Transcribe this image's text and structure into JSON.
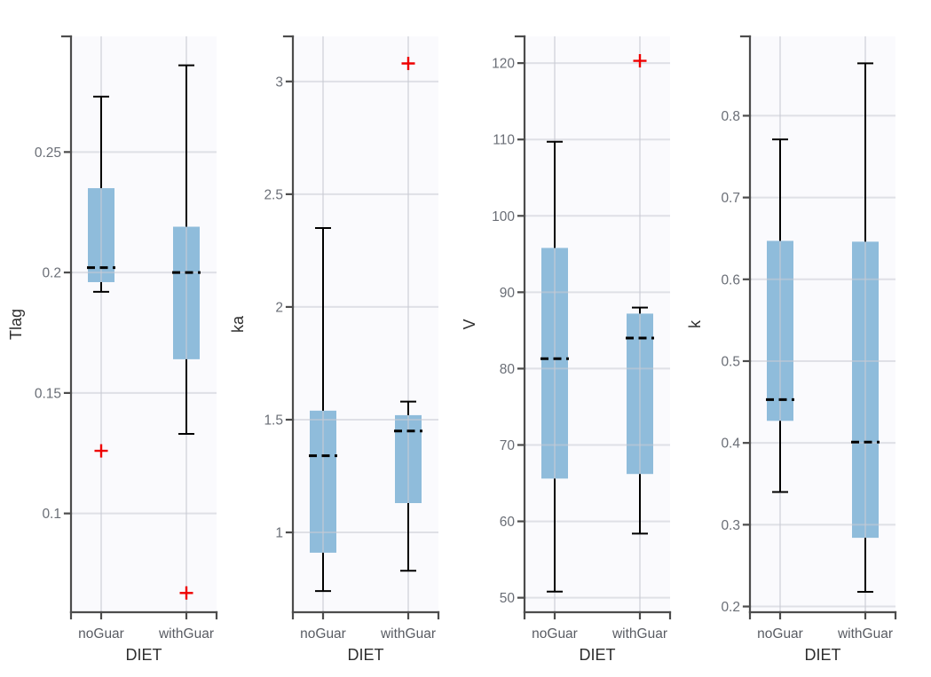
{
  "figure": {
    "kind": "boxplot-grid",
    "x_axis_title": "DIET",
    "categories": [
      "noGuar",
      "withGuar"
    ]
  },
  "style": {
    "box_fill": "#8fbcdb",
    "whisker_color": "#000000",
    "median_color": "#000000",
    "outlier_color": "#ee0000",
    "grid_color": "#e4e4e8",
    "panel_bg": "#fafafd",
    "page_bg": "#ffffff",
    "axis_color": "#4c4c4c",
    "tick_label_color": "#6a6e76",
    "axis_title_color": "#2e2e2e"
  },
  "chart_data": [
    {
      "type": "boxplot",
      "ylabel": "Tlag",
      "xlabel": "DIET",
      "categories": [
        "noGuar",
        "withGuar"
      ],
      "yticks": [
        0.1,
        0.15,
        0.2,
        0.25
      ],
      "ytick_labels": [
        "0.1",
        "0.15",
        "0.2",
        "0.25"
      ],
      "ylim": [
        0.059,
        0.298
      ],
      "grid": true,
      "boxes": [
        {
          "category": "noGuar",
          "whisker_low": 0.192,
          "q1": 0.196,
          "median": 0.202,
          "q3": 0.235,
          "whisker_high": 0.273,
          "outliers": [
            0.126
          ]
        },
        {
          "category": "withGuar",
          "whisker_low": 0.133,
          "q1": 0.164,
          "median": 0.2,
          "q3": 0.219,
          "whisker_high": 0.286,
          "outliers": [
            0.067
          ]
        }
      ]
    },
    {
      "type": "boxplot",
      "ylabel": "ka",
      "xlabel": "DIET",
      "categories": [
        "noGuar",
        "withGuar"
      ],
      "yticks": [
        1,
        1.5,
        2,
        2.5,
        3
      ],
      "ytick_labels": [
        "1",
        "1.5",
        "2",
        "2.5",
        "3"
      ],
      "ylim": [
        0.646,
        3.2
      ],
      "grid": true,
      "boxes": [
        {
          "category": "noGuar",
          "whisker_low": 0.74,
          "q1": 0.91,
          "median": 1.34,
          "q3": 1.54,
          "whisker_high": 2.35,
          "outliers": []
        },
        {
          "category": "withGuar",
          "whisker_low": 0.83,
          "q1": 1.13,
          "median": 1.45,
          "q3": 1.52,
          "whisker_high": 1.58,
          "outliers": [
            3.08
          ]
        }
      ]
    },
    {
      "type": "boxplot",
      "ylabel": "V",
      "xlabel": "DIET",
      "categories": [
        "noGuar",
        "withGuar"
      ],
      "yticks": [
        50,
        60,
        70,
        80,
        90,
        100,
        110,
        120
      ],
      "ytick_labels": [
        "50",
        "60",
        "70",
        "80",
        "90",
        "100",
        "110",
        "120"
      ],
      "ylim": [
        48.1,
        123.5
      ],
      "grid": true,
      "boxes": [
        {
          "category": "noGuar",
          "whisker_low": 50.8,
          "q1": 65.6,
          "median": 81.3,
          "q3": 95.8,
          "whisker_high": 109.7,
          "outliers": []
        },
        {
          "category": "withGuar",
          "whisker_low": 58.4,
          "q1": 66.2,
          "median": 84.0,
          "q3": 87.2,
          "whisker_high": 88.0,
          "outliers": [
            120.3
          ]
        }
      ]
    },
    {
      "type": "boxplot",
      "ylabel": "k",
      "xlabel": "DIET",
      "categories": [
        "noGuar",
        "withGuar"
      ],
      "yticks": [
        0.2,
        0.3,
        0.4,
        0.5,
        0.6,
        0.7,
        0.8
      ],
      "ytick_labels": [
        "0.2",
        "0.3",
        "0.4",
        "0.5",
        "0.6",
        "0.7",
        "0.8"
      ],
      "ylim": [
        0.193,
        0.897
      ],
      "grid": true,
      "boxes": [
        {
          "category": "noGuar",
          "whisker_low": 0.34,
          "q1": 0.427,
          "median": 0.453,
          "q3": 0.647,
          "whisker_high": 0.771,
          "outliers": []
        },
        {
          "category": "withGuar",
          "whisker_low": 0.218,
          "q1": 0.284,
          "median": 0.401,
          "q3": 0.646,
          "whisker_high": 0.864,
          "outliers": []
        }
      ]
    }
  ]
}
